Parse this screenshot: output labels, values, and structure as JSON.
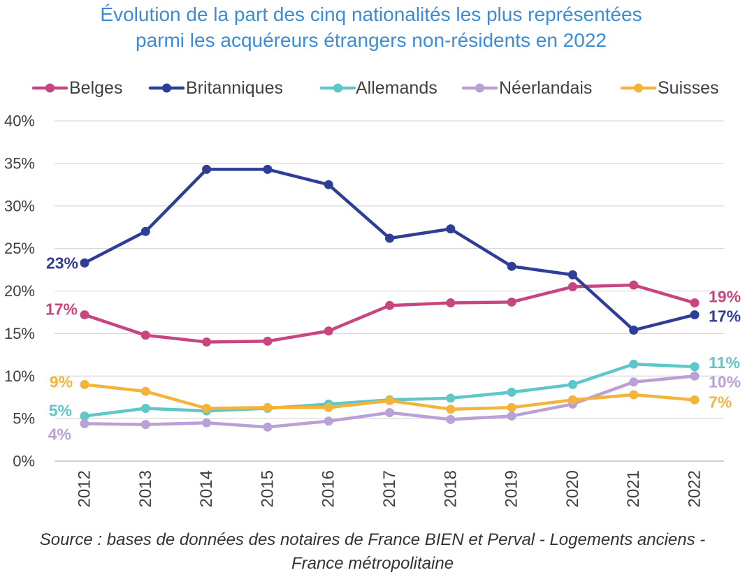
{
  "chart_data": {
    "type": "line",
    "title": [
      "Évolution de la part des cinq nationalités les plus représentées",
      "parmi les acquéreurs étrangers non-résidents en 2022"
    ],
    "categories": [
      "2012",
      "2013",
      "2014",
      "2015",
      "2016",
      "2017",
      "2018",
      "2019",
      "2020",
      "2021",
      "2022"
    ],
    "ylim": [
      0,
      40
    ],
    "yticks": [
      0,
      5,
      10,
      15,
      20,
      25,
      30,
      35,
      40
    ],
    "ytick_labels": [
      "0%",
      "5%",
      "10%",
      "15%",
      "20%",
      "25%",
      "30%",
      "35%",
      "40%"
    ],
    "grid": true,
    "legend_position": "top",
    "series": [
      {
        "name": "Belges",
        "color": "#c8467f",
        "values": [
          17.2,
          14.8,
          14.0,
          14.1,
          15.3,
          18.3,
          18.6,
          18.7,
          20.5,
          20.7,
          18.6
        ],
        "start_label": "17%",
        "end_label": "19%"
      },
      {
        "name": "Britanniques",
        "color": "#2e3e96",
        "values": [
          23.3,
          27.0,
          34.3,
          34.3,
          32.5,
          26.2,
          27.3,
          22.9,
          21.9,
          15.4,
          17.2
        ],
        "start_label": "23%",
        "end_label": "17%"
      },
      {
        "name": "Allemands",
        "color": "#5ec8c8",
        "values": [
          5.3,
          6.2,
          5.9,
          6.2,
          6.7,
          7.2,
          7.4,
          8.1,
          9.0,
          11.4,
          11.1
        ],
        "start_label": "5%",
        "end_label": "11%"
      },
      {
        "name": "Néerlandais",
        "color": "#b9a0d7",
        "values": [
          4.4,
          4.3,
          4.5,
          4.0,
          4.7,
          5.7,
          4.9,
          5.3,
          6.7,
          9.3,
          10.0
        ],
        "start_label": "4%",
        "end_label": "10%"
      },
      {
        "name": "Suisses",
        "color": "#f4b43c",
        "values": [
          9.0,
          8.2,
          6.2,
          6.3,
          6.3,
          7.1,
          6.1,
          6.3,
          7.2,
          7.8,
          7.2
        ],
        "start_label": "9%",
        "end_label": "7%"
      }
    ],
    "source": [
      "Source : bases de données des notaires de France BIEN et Perval - Logements anciens -",
      "France métropolitaine"
    ]
  },
  "colors": {
    "title": "#3c8cd7",
    "axis_text": "#404040",
    "legend_text": "#404040",
    "grid": "#d9d9d9",
    "baseline": "#bfbfbf",
    "source_text": "#333333"
  }
}
